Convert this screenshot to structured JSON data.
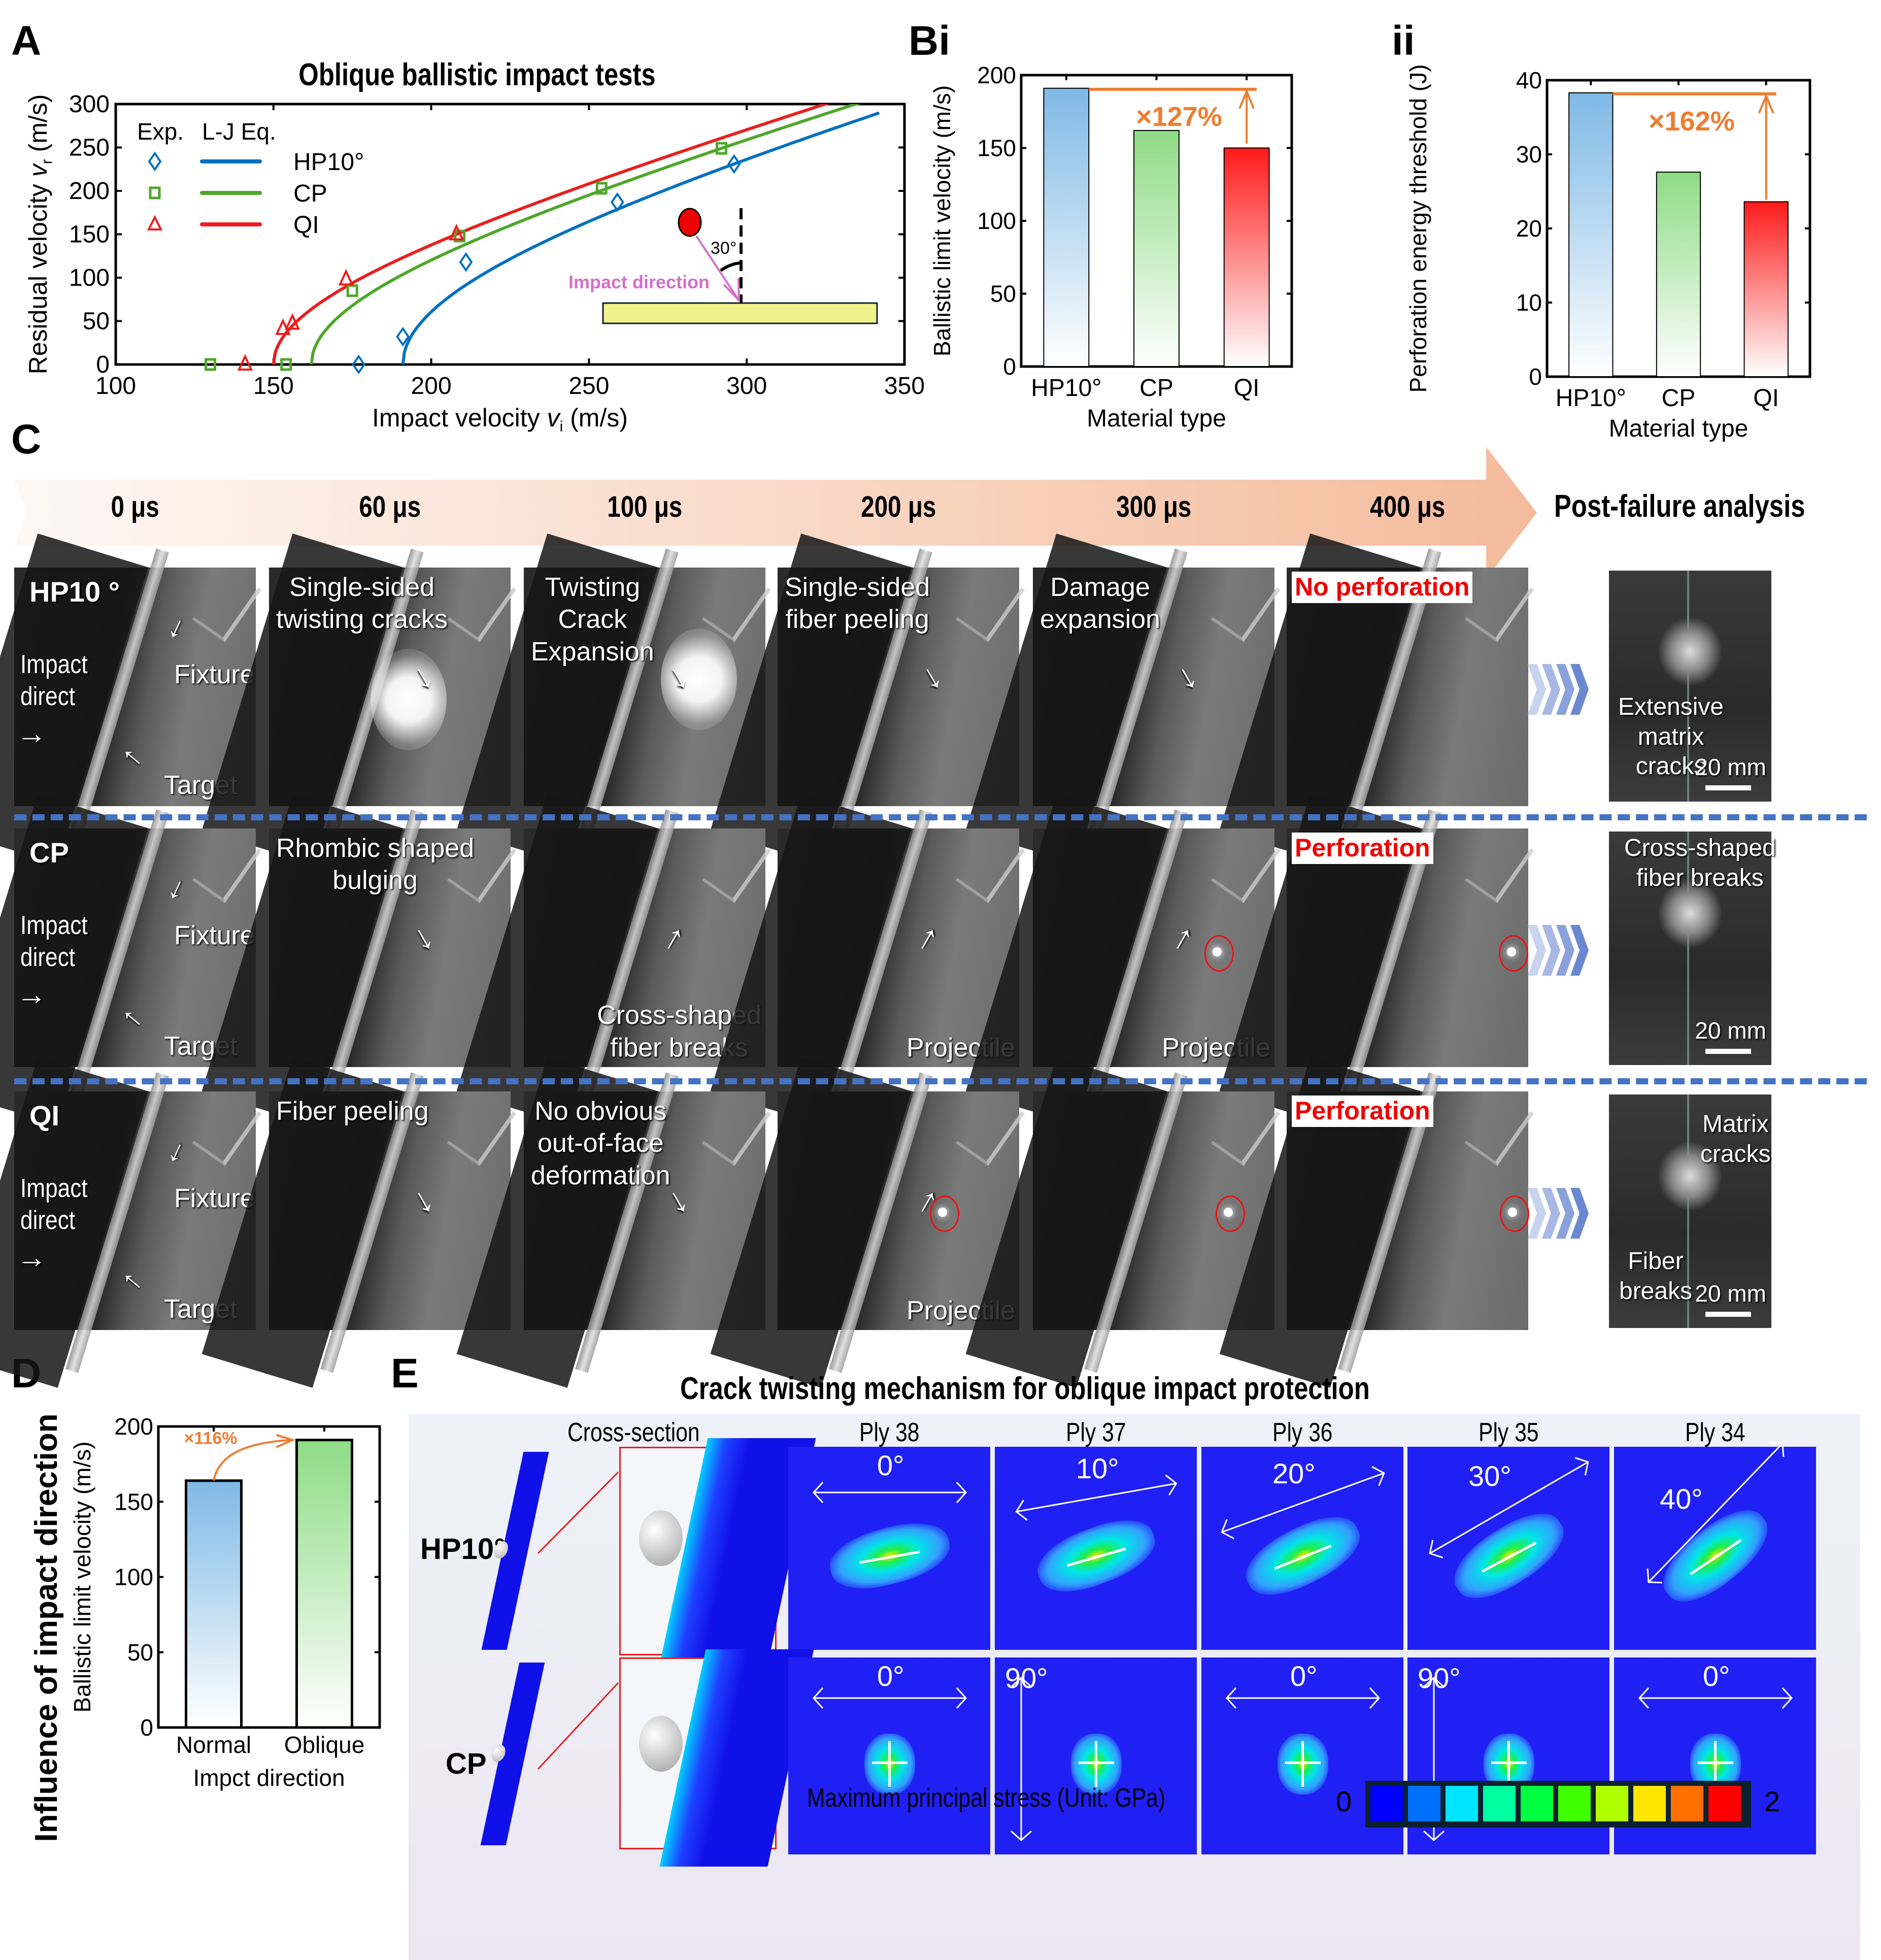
{
  "panel_labels": {
    "A": "A",
    "Bi": "Bi",
    "ii": "ii",
    "C": "C",
    "D": "D",
    "E": "E"
  },
  "chart_data": [
    {
      "id": "A",
      "type": "scatter",
      "title": "Oblique ballistic impact tests",
      "xlabel": "Impact velocity v_i (m/s)",
      "xlabel_parts": {
        "pre": "Impact velocity ",
        "var": "v",
        "sub": "i",
        "post": " (m/s)"
      },
      "ylabel": "Residual velocity v_r (m/s)",
      "ylabel_parts": {
        "pre": "Residual velocity ",
        "var": "v",
        "sub": "r",
        "post": " (m/s)"
      },
      "xlim": [
        100,
        350
      ],
      "ylim": [
        0,
        300
      ],
      "xticks": [
        100,
        150,
        200,
        250,
        300,
        350
      ],
      "yticks": [
        0,
        50,
        100,
        150,
        200,
        250,
        300
      ],
      "legend": {
        "header_exp": "Exp.",
        "header_fit": "L-J Eq.",
        "position": "top-left"
      },
      "series": [
        {
          "name": "HP10°",
          "color": "#0070c0",
          "marker": "diamond",
          "vbl": 191,
          "points": [
            [
              177,
              0
            ],
            [
              191,
              32
            ],
            [
              211,
              118
            ],
            [
              259,
              187
            ],
            [
              296,
              231
            ]
          ],
          "fit_xmax": 342
        },
        {
          "name": "CP",
          "color": "#4ea72a",
          "marker": "square",
          "vbl": 162,
          "points": [
            [
              130,
              0
            ],
            [
              154,
              0
            ],
            [
              175,
              85
            ],
            [
              209,
              148
            ],
            [
              254,
              203
            ],
            [
              292,
              249
            ]
          ],
          "fit_xmax": 342
        },
        {
          "name": "QI",
          "color": "#ee1c1c",
          "marker": "triangle",
          "vbl": 150,
          "points": [
            [
              141,
              0
            ],
            [
              153,
              41
            ],
            [
              156,
              47
            ],
            [
              173,
              98
            ],
            [
              208,
              150
            ]
          ],
          "fit_xmax": 342
        }
      ],
      "inset": {
        "angle_label": "30°",
        "direction_label": "Impact direction"
      }
    },
    {
      "id": "Bi",
      "type": "bar",
      "categories": [
        "HP10°",
        "CP",
        "QI"
      ],
      "values": [
        191,
        162,
        150
      ],
      "colors": [
        "#7fb9e6",
        "#8edb85",
        "#ff1a1a"
      ],
      "ylabel": "Ballistic limit velocity (m/s)",
      "xlabel": "Material type",
      "ylim": [
        0,
        200
      ],
      "yticks": [
        0,
        50,
        100,
        150,
        200
      ],
      "annotation": "×127%"
    },
    {
      "id": "ii",
      "type": "bar",
      "categories": [
        "HP10°",
        "CP",
        "QI"
      ],
      "values": [
        38.3,
        27.6,
        23.6
      ],
      "colors": [
        "#7fb9e6",
        "#8edb85",
        "#ff1a1a"
      ],
      "ylabel": "Perforation energy threshold (J)",
      "xlabel": "Material type",
      "ylim": [
        0,
        40
      ],
      "yticks": [
        0,
        10,
        20,
        30,
        40
      ],
      "annotation": "×162%"
    },
    {
      "id": "D",
      "type": "bar",
      "categories": [
        "Normal",
        "Oblique"
      ],
      "values": [
        164,
        191
      ],
      "colors": [
        "#7fb9e6",
        "#8edb85"
      ],
      "side_title": "Influence of impact direction",
      "ylabel": "Ballistic limit velocity (m/s)",
      "xlabel": "Impct direction",
      "ylim": [
        0,
        200
      ],
      "yticks": [
        0,
        50,
        100,
        150,
        200
      ],
      "annotation": "×116%"
    }
  ],
  "panel_c": {
    "timeline": [
      "0 μs",
      "60 μs",
      "100 μs",
      "200 μs",
      "300 μs",
      "400 μs"
    ],
    "post_title": "Post-failure analysis",
    "rows": [
      {
        "name": "HP10 °",
        "frames": [
          {
            "labels": [
              "Impact",
              "direct"
            ],
            "fixture": "Fixture",
            "target": "Target"
          },
          {
            "labels": [
              "Single-sided",
              "twisting cracks"
            ]
          },
          {
            "labels": [
              "Twisting",
              "Crack",
              "Expansion"
            ]
          },
          {
            "labels": [
              "Single-sided",
              "fiber peeling"
            ]
          },
          {
            "labels": [
              "Damage",
              "expansion"
            ]
          },
          {
            "badge": "No perforation"
          }
        ],
        "post": {
          "labels": [
            "Extensive",
            "matrix",
            "cracks"
          ],
          "scale": "20 mm"
        }
      },
      {
        "name": "CP",
        "frames": [
          {
            "labels": [
              "Impact",
              "direct"
            ],
            "fixture": "Fixture",
            "target": "Target"
          },
          {
            "labels": [
              "Rhombic shaped",
              "bulging"
            ]
          },
          {
            "labels": [
              "Cross-shaped",
              "fiber breaks"
            ]
          },
          {
            "labels": [
              "Projectile"
            ]
          },
          {
            "labels": [
              "Projectile"
            ]
          },
          {
            "badge": "Perforation"
          }
        ],
        "post": {
          "labels": [
            "Cross-shaped",
            "fiber breaks"
          ],
          "scale": "20 mm"
        }
      },
      {
        "name": "QI",
        "frames": [
          {
            "labels": [
              "Impact",
              "direct"
            ],
            "fixture": "Fixture",
            "target": "Target"
          },
          {
            "labels": [
              "Fiber peeling"
            ]
          },
          {
            "labels": [
              "No obvious",
              "out-of-face",
              "deformation"
            ]
          },
          {
            "labels": [
              "Projectile"
            ]
          },
          {
            "labels": []
          },
          {
            "badge": "Perforation"
          }
        ],
        "post": {
          "labels_top": [
            "Matrix",
            "cracks"
          ],
          "labels_bottom": [
            "Fiber",
            "breaks"
          ],
          "scale": "20 mm"
        }
      }
    ]
  },
  "panel_e": {
    "title": "Crack twisting mechanism for oblique impact protection",
    "cross_section_label": "Cross-section",
    "ply_headers": [
      "Ply 38",
      "Ply 37",
      "Ply 36",
      "Ply 35",
      "Ply 34"
    ],
    "rows": [
      {
        "name": "HP10°",
        "angles": [
          "0°",
          "10°",
          "20°",
          "30°",
          "40°"
        ]
      },
      {
        "name": "CP",
        "angles": [
          "0°",
          "90°",
          "0°",
          "90°",
          "0°"
        ]
      }
    ],
    "colorbar": {
      "label": "Maximum principal stress (Unit: GPa)",
      "min": "0",
      "max": "2",
      "colors": [
        "#0000ff",
        "#0070ff",
        "#00e5ff",
        "#00ffa0",
        "#00ff40",
        "#40ff00",
        "#b0ff00",
        "#ffe600",
        "#ff7000",
        "#ff0000"
      ]
    }
  }
}
